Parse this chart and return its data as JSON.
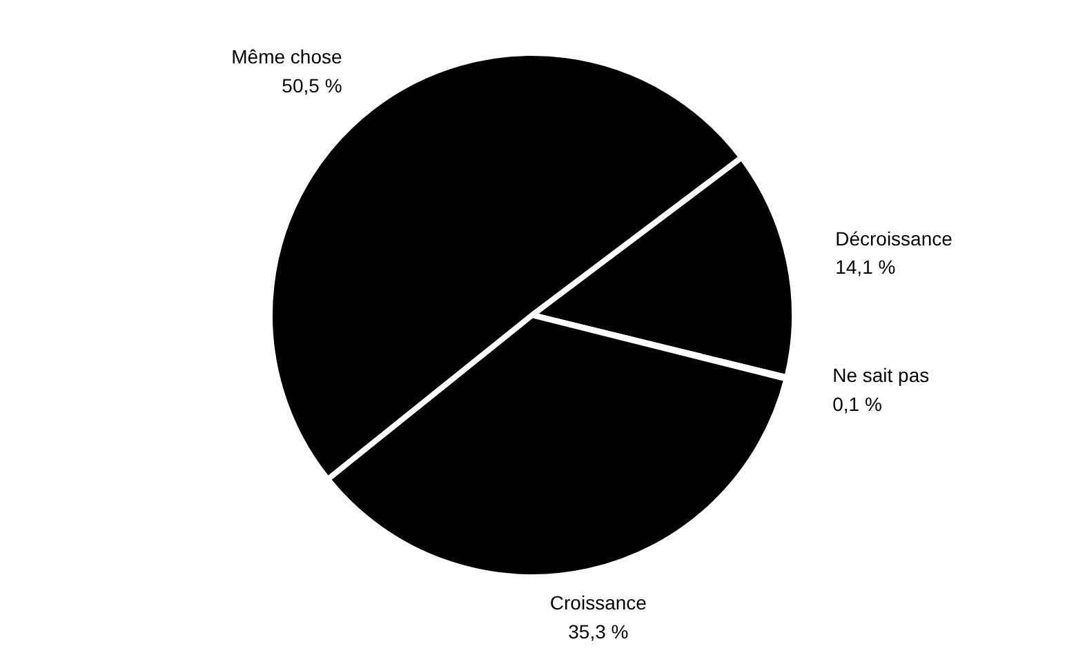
{
  "chart_data": {
    "type": "pie",
    "categories": [
      "Décroissance",
      "Ne sait pas",
      "Croissance",
      "Même chose"
    ],
    "values": [
      14.1,
      0.1,
      35.3,
      50.5
    ],
    "colors": [
      "#000000",
      "#000000",
      "#000000",
      "#000000"
    ],
    "value_labels": [
      "14,1 %",
      "0,1 %",
      "35,3 %",
      "50,5 %"
    ]
  }
}
